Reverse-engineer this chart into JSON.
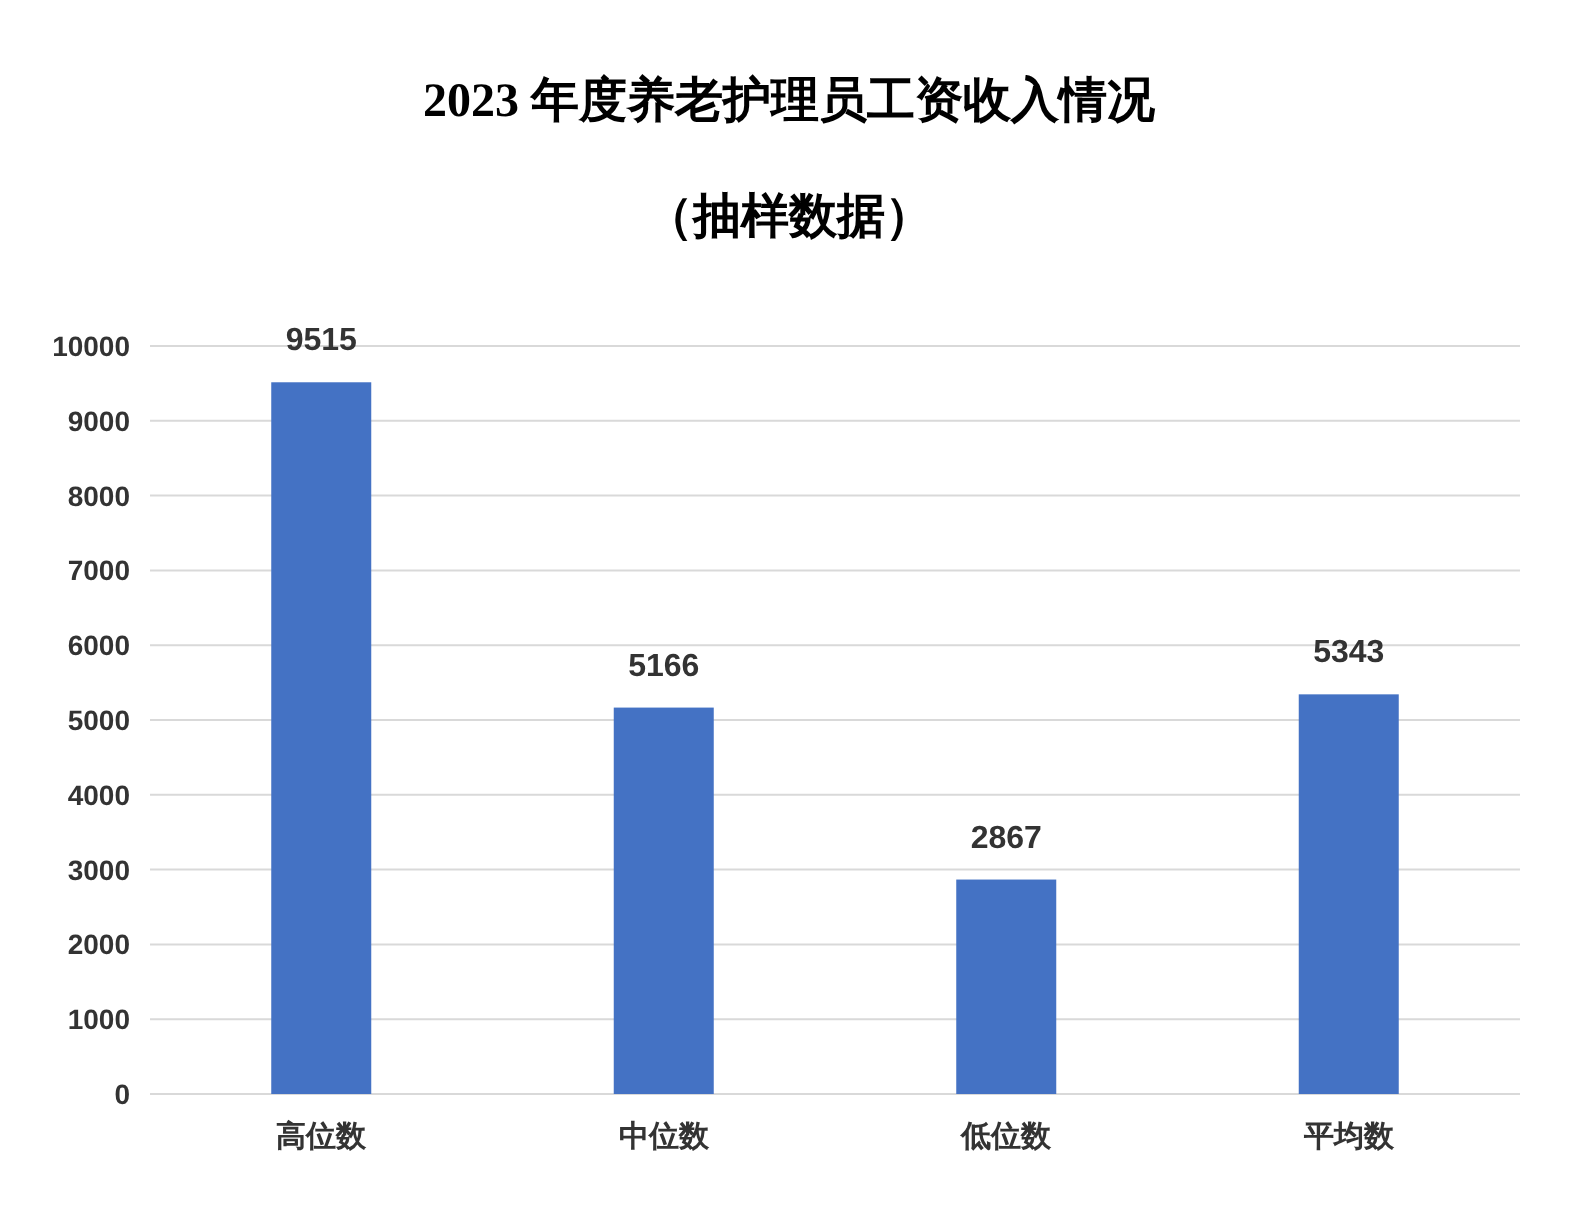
{
  "chart_data": {
    "type": "bar",
    "title": "2023 年度养老护理员工资收入情况",
    "subtitle": "（抽样数据）",
    "categories": [
      "高位数",
      "中位数",
      "低位数",
      "平均数"
    ],
    "values": [
      9515,
      5166,
      2867,
      5343
    ],
    "color": "#4472c4",
    "ylim": [
      0,
      10000
    ],
    "yticks": [
      0,
      1000,
      2000,
      3000,
      4000,
      5000,
      6000,
      7000,
      8000,
      9000,
      10000
    ],
    "grid": "y",
    "data_labels": true
  }
}
